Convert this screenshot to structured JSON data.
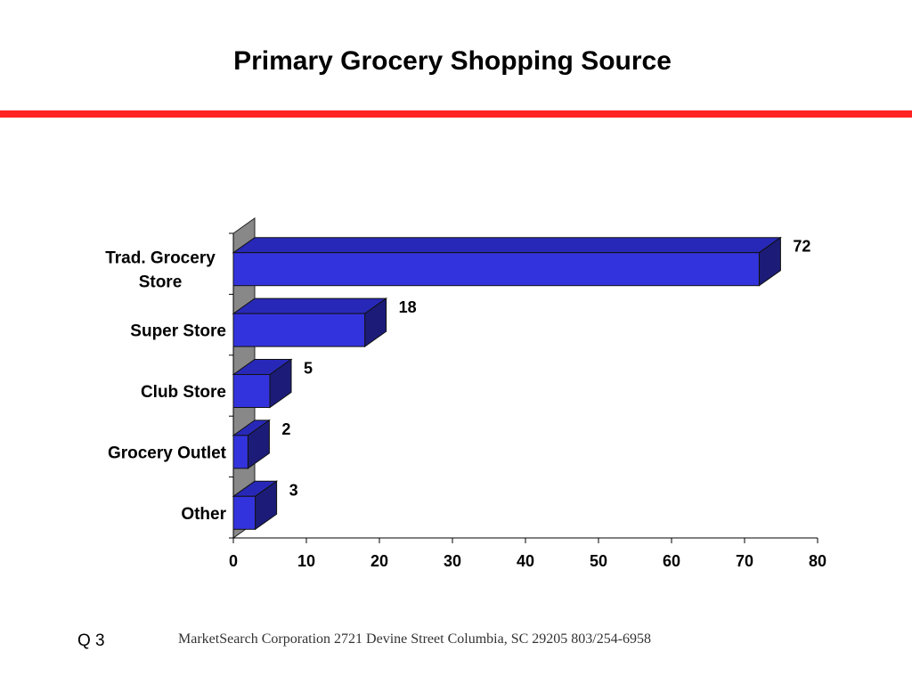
{
  "slide": {
    "title": "Primary Grocery Shopping Source",
    "question_label": "Q 3",
    "footer": "MarketSearch Corporation  2721 Devine Street Columbia, SC 29205 803/254-6958"
  },
  "colors": {
    "rule": "#ff2222",
    "bar_front": "#3333dd",
    "bar_top": "#2828b8",
    "bar_side": "#1c1c78",
    "wall": "#888888"
  },
  "chart_data": {
    "type": "bar",
    "orientation": "horizontal",
    "style": "3d",
    "title": "Primary Grocery Shopping Source",
    "categories": [
      "Trad. Grocery Store",
      "Super Store",
      "Club Store",
      "Grocery Outlet",
      "Other"
    ],
    "category_label_lines": [
      [
        "Trad. Grocery",
        "Store"
      ],
      [
        "Super Store"
      ],
      [
        "Club Store"
      ],
      [
        "Grocery Outlet"
      ],
      [
        "Other"
      ]
    ],
    "values": [
      72,
      18,
      5,
      2,
      3
    ],
    "data_labels": [
      "72",
      "18",
      "5",
      "2",
      "3"
    ],
    "xlim": [
      0,
      80
    ],
    "xticks": [
      0,
      10,
      20,
      30,
      40,
      50,
      60,
      70,
      80
    ],
    "xlabel": "",
    "ylabel": "",
    "grid": false,
    "legend": "none"
  }
}
